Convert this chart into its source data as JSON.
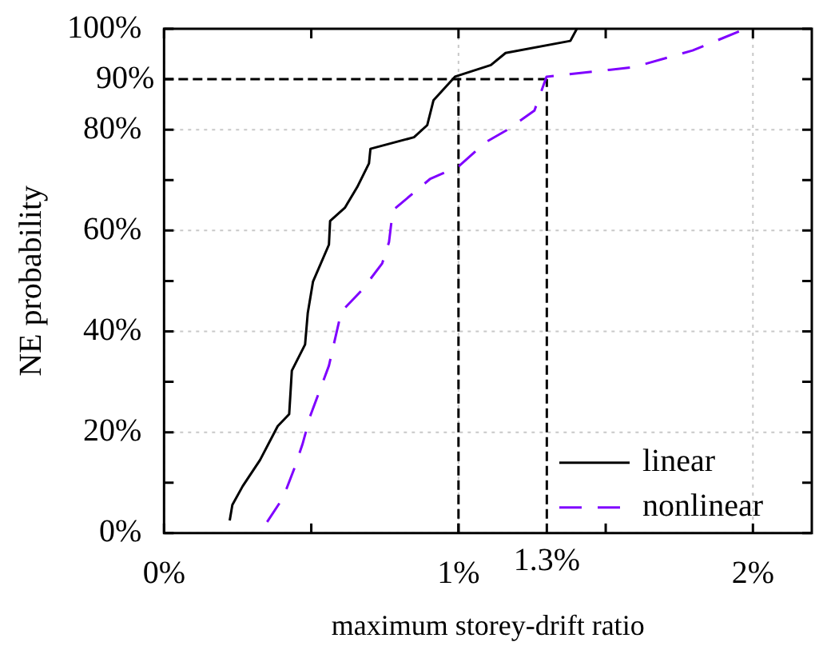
{
  "chart_data": {
    "type": "line",
    "xlabel": "maximum storey-drift ratio",
    "ylabel": "NE probability",
    "xlim": [
      0,
      2.2
    ],
    "ylim": [
      0,
      100
    ],
    "xticks": [
      {
        "value": 0,
        "label": "0%"
      },
      {
        "value": 0.5,
        "label": null
      },
      {
        "value": 1,
        "label": "1%"
      },
      {
        "value": 1.5,
        "label": null
      },
      {
        "value": 2,
        "label": "2%"
      }
    ],
    "yticks": [
      {
        "value": 0,
        "label": "0%"
      },
      {
        "value": 10,
        "label": null
      },
      {
        "value": 20,
        "label": "20%"
      },
      {
        "value": 30,
        "label": null
      },
      {
        "value": 40,
        "label": "40%"
      },
      {
        "value": 50,
        "label": null
      },
      {
        "value": 60,
        "label": "60%"
      },
      {
        "value": 70,
        "label": null
      },
      {
        "value": 80,
        "label": "80%"
      },
      {
        "value": 90,
        "label": null
      },
      {
        "value": 100,
        "label": "100%"
      }
    ],
    "series": [
      {
        "name": "linear",
        "color": "#000000",
        "line_style": "solid",
        "x": [
          0.223,
          0.232,
          0.267,
          0.326,
          0.386,
          0.425,
          0.434,
          0.479,
          0.488,
          0.506,
          0.56,
          0.564,
          0.614,
          0.656,
          0.696,
          0.701,
          0.849,
          0.894,
          0.915,
          0.988,
          1.11,
          1.16,
          1.38,
          1.402
        ],
        "values": [
          2.5,
          5.6,
          9.3,
          14.5,
          21.2,
          23.6,
          32.2,
          37.4,
          43.6,
          49.9,
          57.2,
          61.9,
          64.5,
          68.6,
          73.3,
          76.2,
          78.5,
          80.9,
          85.8,
          90.5,
          92.8,
          95.2,
          97.6,
          100
        ]
      },
      {
        "name": "nonlinear",
        "color": "#7f00ff",
        "line_style": "dashed",
        "x": [
          0.35,
          0.404,
          0.443,
          0.47,
          0.497,
          0.56,
          0.602,
          0.674,
          0.741,
          0.764,
          0.777,
          0.903,
          1.002,
          1.092,
          1.164,
          1.258,
          1.299,
          1.317,
          1.596,
          1.795,
          1.975
        ],
        "values": [
          2.2,
          7,
          12.9,
          17.6,
          23.3,
          33.2,
          43.9,
          48.3,
          53.5,
          57.7,
          64,
          70.2,
          72.8,
          77.5,
          79.9,
          83.8,
          90.5,
          90.6,
          92.4,
          95.7,
          100
        ]
      }
    ],
    "ref_lines": [
      {
        "axis": "y",
        "value": 90,
        "label": "90%",
        "color": "#000000",
        "line_style": "dashed"
      },
      {
        "axis": "x",
        "value": 1,
        "color": "#000000",
        "line_style": "dashed"
      },
      {
        "axis": "x",
        "value": 1.3,
        "label": "1.3%",
        "color": "#000000",
        "line_style": "dashed"
      }
    ],
    "grid": true,
    "legend": "bottom right",
    "marker": "none"
  }
}
